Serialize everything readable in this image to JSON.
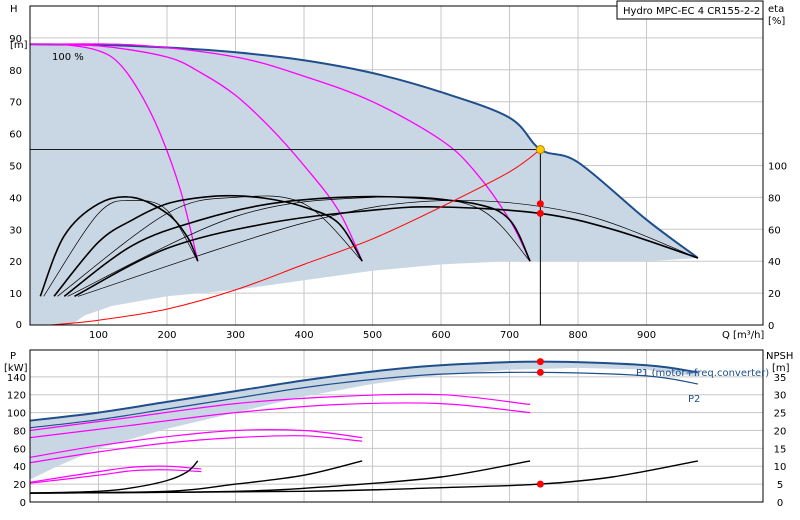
{
  "title_box": "Hydro MPC-EC 4 CR155-2-2",
  "colors": {
    "envelope_fill": "#c9d6e3",
    "envelope_line": "#1f4e8c",
    "grid": "#c8c8c8",
    "magenta": "#ff00ff",
    "black": "#000000",
    "red": "#ff0000",
    "op_point": "#ffcc00"
  },
  "chart_data": [
    {
      "type": "line",
      "name": "head",
      "xlabel": "Q [m³/h]",
      "ylabel_left": [
        "H",
        "[m]"
      ],
      "ylabel_right": [
        "eta",
        "[%]"
      ],
      "xlim": [
        0,
        1070
      ],
      "ylim": [
        0,
        100
      ],
      "x_ticks": [
        0,
        100,
        200,
        300,
        400,
        500,
        600,
        700,
        800,
        900
      ],
      "y_ticks": [
        0,
        10,
        20,
        30,
        40,
        50,
        60,
        70,
        80,
        90
      ],
      "eta_ticks": [
        0,
        20,
        40,
        60,
        80,
        100
      ],
      "eta_scale_factor": 0.5,
      "annotation": "100 %",
      "operating_point": {
        "q": 745,
        "h": 55
      },
      "envelope_max_speed": [
        [
          0,
          88
        ],
        [
          100,
          87.8
        ],
        [
          200,
          87
        ],
        [
          300,
          85.5
        ],
        [
          400,
          83
        ],
        [
          500,
          79
        ],
        [
          600,
          73
        ],
        [
          700,
          65
        ],
        [
          745,
          55
        ],
        [
          800,
          51
        ],
        [
          900,
          33
        ],
        [
          975,
          21
        ]
      ],
      "envelope_min_bound": [
        [
          0,
          0
        ],
        [
          30,
          0
        ],
        [
          60,
          0
        ],
        [
          80,
          3
        ],
        [
          120,
          6
        ],
        [
          200,
          9
        ],
        [
          300,
          11
        ],
        [
          400,
          14
        ],
        [
          500,
          17
        ],
        [
          600,
          19
        ],
        [
          700,
          20
        ],
        [
          800,
          20
        ],
        [
          900,
          20
        ],
        [
          975,
          21
        ]
      ],
      "head_curves_magenta": [
        [
          [
            0,
            88
          ],
          [
            50,
            87.9
          ],
          [
            100,
            86
          ],
          [
            130,
            82
          ],
          [
            160,
            73
          ],
          [
            190,
            60
          ],
          [
            220,
            42
          ],
          [
            245,
            20
          ]
        ],
        [
          [
            0,
            88
          ],
          [
            100,
            87.5
          ],
          [
            200,
            84
          ],
          [
            250,
            79
          ],
          [
            300,
            72
          ],
          [
            350,
            62
          ],
          [
            400,
            50
          ],
          [
            450,
            36
          ],
          [
            485,
            20
          ]
        ],
        [
          [
            0,
            88
          ],
          [
            150,
            87.8
          ],
          [
            300,
            84
          ],
          [
            400,
            78
          ],
          [
            500,
            70
          ],
          [
            600,
            58
          ],
          [
            650,
            48
          ],
          [
            700,
            33
          ],
          [
            730,
            20
          ]
        ]
      ],
      "eta_curves_black": [
        [
          [
            15,
            18
          ],
          [
            50,
            56
          ],
          [
            100,
            76
          ],
          [
            150,
            80
          ],
          [
            200,
            70
          ],
          [
            230,
            55
          ],
          [
            245,
            40
          ]
        ],
        [
          [
            35,
            18
          ],
          [
            100,
            52
          ],
          [
            150,
            66
          ],
          [
            200,
            76
          ],
          [
            250,
            80
          ],
          [
            300,
            81
          ],
          [
            350,
            79
          ],
          [
            400,
            74
          ],
          [
            450,
            64
          ],
          [
            485,
            40
          ]
        ],
        [
          [
            50,
            18
          ],
          [
            150,
            50
          ],
          [
            250,
            66
          ],
          [
            350,
            76
          ],
          [
            450,
            80
          ],
          [
            550,
            80
          ],
          [
            650,
            76
          ],
          [
            700,
            66
          ],
          [
            730,
            40
          ]
        ],
        [
          [
            65,
            18
          ],
          [
            200,
            48
          ],
          [
            350,
            64
          ],
          [
            500,
            72
          ],
          [
            600,
            74
          ],
          [
            745,
            70
          ],
          [
            850,
            60
          ],
          [
            975,
            42
          ]
        ]
      ],
      "eta_curves_thin": [
        [
          [
            20,
            18
          ],
          [
            100,
            70
          ],
          [
            150,
            78
          ],
          [
            200,
            72
          ],
          [
            245,
            40
          ]
        ],
        [
          [
            40,
            18
          ],
          [
            200,
            70
          ],
          [
            300,
            80
          ],
          [
            400,
            76
          ],
          [
            485,
            40
          ]
        ],
        [
          [
            55,
            18
          ],
          [
            300,
            68
          ],
          [
            500,
            80
          ],
          [
            650,
            74
          ],
          [
            730,
            40
          ]
        ],
        [
          [
            70,
            18
          ],
          [
            400,
            64
          ],
          [
            600,
            78
          ],
          [
            800,
            70
          ],
          [
            975,
            42
          ]
        ]
      ],
      "system_curve_red": [
        [
          30,
          0
        ],
        [
          100,
          1.5
        ],
        [
          200,
          5
        ],
        [
          300,
          11
        ],
        [
          400,
          19
        ],
        [
          500,
          27
        ],
        [
          600,
          37
        ],
        [
          700,
          48
        ],
        [
          745,
          55
        ]
      ],
      "eta_marks": [
        76,
        70
      ]
    },
    {
      "type": "line",
      "name": "power",
      "ylabel_left": [
        "P",
        "[kW]"
      ],
      "ylabel_right": [
        "NPSH",
        "[m]"
      ],
      "xlim": [
        0,
        1070
      ],
      "ylim": [
        0,
        170
      ],
      "y_ticks": [
        0,
        20,
        40,
        60,
        80,
        100,
        120,
        140
      ],
      "npsh_ticks": [
        0,
        5,
        10,
        15,
        20,
        25,
        30,
        35
      ],
      "npsh_max": 42.5,
      "series_labels": [
        "P1 (motor+freq.converter)",
        "P2"
      ],
      "p1_points": [
        [
          0,
          91
        ],
        [
          100,
          100
        ],
        [
          200,
          112
        ],
        [
          300,
          124
        ],
        [
          400,
          136
        ],
        [
          500,
          146
        ],
        [
          600,
          153
        ],
        [
          745,
          157
        ],
        [
          900,
          153
        ],
        [
          975,
          145
        ]
      ],
      "p2_points": [
        [
          0,
          83
        ],
        [
          100,
          92
        ],
        [
          200,
          104
        ],
        [
          300,
          116
        ],
        [
          400,
          128
        ],
        [
          500,
          137
        ],
        [
          600,
          143
        ],
        [
          745,
          145
        ],
        [
          900,
          141
        ],
        [
          975,
          132
        ]
      ],
      "env_lower": [
        [
          0,
          25
        ],
        [
          40,
          40
        ],
        [
          100,
          60
        ],
        [
          200,
          82
        ],
        [
          300,
          100
        ],
        [
          400,
          118
        ],
        [
          500,
          132
        ],
        [
          600,
          142
        ],
        [
          700,
          148
        ],
        [
          800,
          150
        ],
        [
          900,
          148
        ],
        [
          975,
          140
        ]
      ],
      "magenta_power": [
        [
          [
            0,
            22
          ],
          [
            100,
            34
          ],
          [
            150,
            39
          ],
          [
            200,
            40
          ],
          [
            250,
            37
          ]
        ],
        [
          [
            0,
            21
          ],
          [
            100,
            30
          ],
          [
            150,
            35
          ],
          [
            200,
            36
          ],
          [
            250,
            34
          ]
        ],
        [
          [
            0,
            50
          ],
          [
            100,
            63
          ],
          [
            200,
            73
          ],
          [
            300,
            80
          ],
          [
            400,
            80
          ],
          [
            485,
            72
          ]
        ],
        [
          [
            0,
            44
          ],
          [
            100,
            56
          ],
          [
            200,
            66
          ],
          [
            300,
            72
          ],
          [
            400,
            74
          ],
          [
            485,
            68
          ]
        ],
        [
          [
            0,
            80
          ],
          [
            150,
            95
          ],
          [
            300,
            110
          ],
          [
            450,
            118
          ],
          [
            600,
            120
          ],
          [
            730,
            109
          ]
        ],
        [
          [
            0,
            72
          ],
          [
            150,
            86
          ],
          [
            300,
            100
          ],
          [
            450,
            109
          ],
          [
            600,
            110
          ],
          [
            730,
            100
          ]
        ]
      ],
      "npsh_curves": [
        [
          [
            0,
            2.5
          ],
          [
            100,
            3
          ],
          [
            150,
            4
          ],
          [
            200,
            6
          ],
          [
            230,
            8.5
          ],
          [
            245,
            11.5
          ]
        ],
        [
          [
            0,
            2.5
          ],
          [
            200,
            3
          ],
          [
            300,
            5
          ],
          [
            400,
            7.5
          ],
          [
            485,
            11.5
          ]
        ],
        [
          [
            0,
            2.5
          ],
          [
            300,
            3
          ],
          [
            450,
            4.5
          ],
          [
            600,
            7
          ],
          [
            730,
            11.5
          ]
        ],
        [
          [
            0,
            2.5
          ],
          [
            400,
            3
          ],
          [
            600,
            4
          ],
          [
            745,
            5
          ],
          [
            850,
            7
          ],
          [
            975,
            11.5
          ]
        ]
      ],
      "p_marks": [
        157,
        145
      ],
      "npsh_mark": 5
    }
  ]
}
